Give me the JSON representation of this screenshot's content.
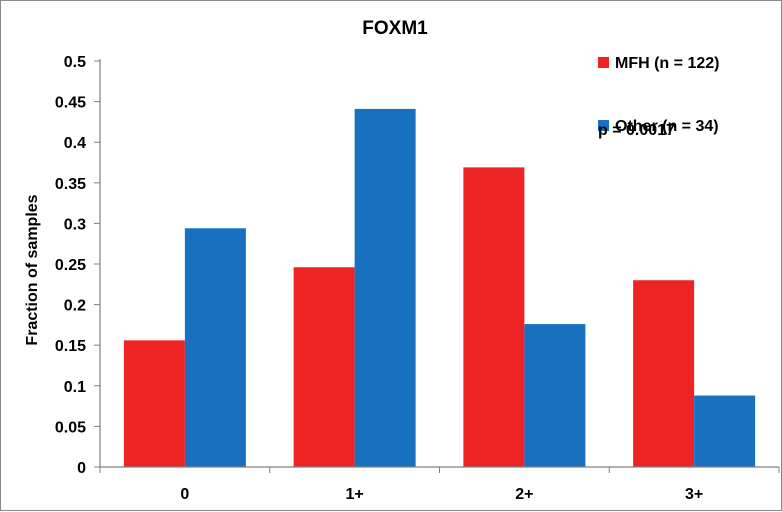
{
  "chart_data": {
    "type": "bar",
    "title": "FOXM1",
    "xlabel": "",
    "ylabel": "Fraction of samples",
    "categories": [
      "0",
      "1+",
      "2+",
      "3+"
    ],
    "series": [
      {
        "name": "MFH (n = 122)",
        "color": "#ee2424",
        "values": [
          0.156,
          0.246,
          0.369,
          0.23
        ]
      },
      {
        "name": "Other (n = 34)",
        "color": "#1871bf",
        "values": [
          0.294,
          0.441,
          0.176,
          0.088
        ]
      }
    ],
    "ylim": [
      0,
      0.5
    ],
    "yticks": [
      "0",
      "0.05",
      "0.1",
      "0.15",
      "0.2",
      "0.25",
      "0.3",
      "0.35",
      "0.4",
      "0.45",
      "0.5"
    ],
    "yticks_values": [
      0,
      0.05,
      0.1,
      0.15,
      0.2,
      0.25,
      0.3,
      0.35,
      0.4,
      0.45,
      0.5
    ],
    "annotation": "p = 0.0017",
    "legend_position": "top-right",
    "grid": false
  }
}
